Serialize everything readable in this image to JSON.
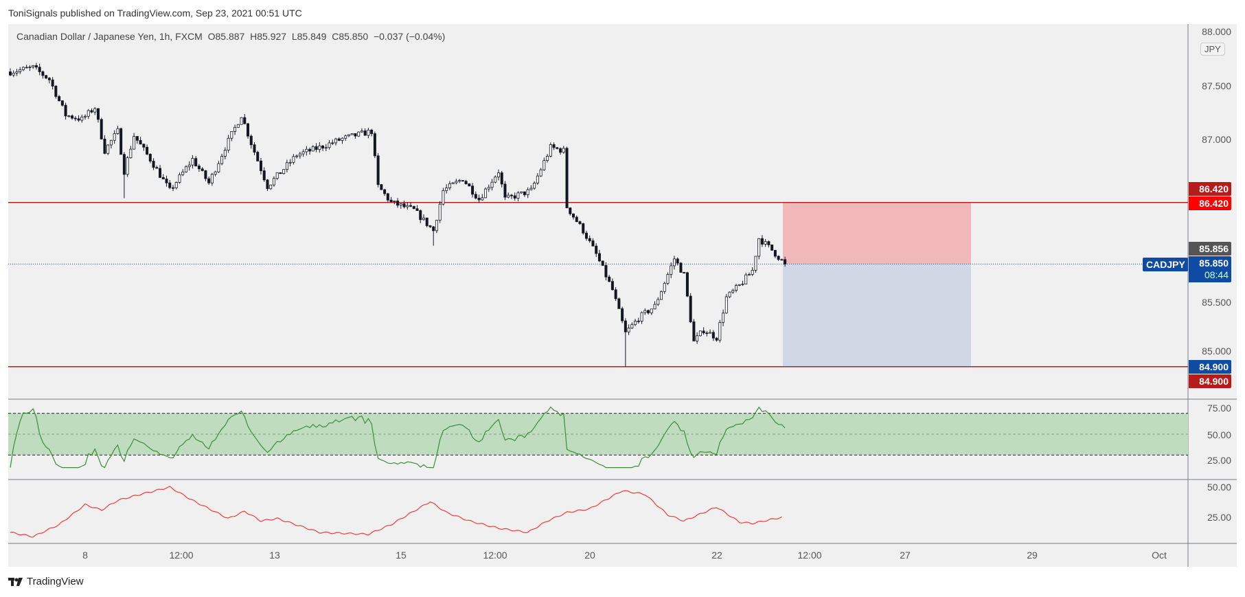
{
  "header": {
    "published": "ToniSignals published on TradingView.com, Sep 23, 2021 00:51 UTC"
  },
  "legend": {
    "symbol": "Canadian Dollar / Japanese Yen, 1h, FXCM",
    "open": "O85.887",
    "high": "H85.927",
    "low": "L85.849",
    "close": "C85.850",
    "change": "−0.037 (−0.04%)"
  },
  "price_axis": {
    "currency": "JPY",
    "ticks": [
      "88.000",
      "87.500",
      "87.000",
      "85.500",
      "85.000"
    ],
    "tags": {
      "resistance_a": "86.420",
      "resistance_b": "86.420",
      "prev": "85.856",
      "last": "85.850",
      "countdown": "08:44",
      "support_a": "84.900",
      "support_b": "84.900"
    },
    "symbol_label": "CADJPY"
  },
  "rsi_axis": {
    "ticks": [
      "75.00",
      "50.00",
      "25.00"
    ]
  },
  "lower_axis": {
    "ticks": [
      "50.00",
      "25.00"
    ]
  },
  "time_axis": {
    "labels": [
      "8",
      "12:00",
      "13",
      "15",
      "12:00",
      "20",
      "22",
      "12:00",
      "27",
      "29",
      "Oct"
    ]
  },
  "footer": {
    "brand": "TradingView"
  },
  "colors": {
    "level": "#b22222",
    "up": "#ffffff",
    "down": "#131722",
    "rsi": "#3c8c3c",
    "rsi_band": "#bfdcbf",
    "lower": "#f23b3b",
    "stop_zone": "#f0b8b8",
    "target_zone": "#d0d8e6",
    "last": "#0f4aa3"
  },
  "chart_data": {
    "type": "candlestick",
    "symbol": "CADJPY",
    "interval": "1h",
    "ylim": [
      84.75,
      88.0
    ],
    "levels": [
      86.42,
      84.9
    ],
    "last_price": 85.85,
    "position": {
      "entry": 85.85,
      "stop": 86.42,
      "target": 84.9,
      "type": "short"
    },
    "price_path": [
      [
        0,
        87.63
      ],
      [
        7,
        87.67
      ],
      [
        12,
        87.56
      ],
      [
        17,
        87.23
      ],
      [
        22,
        87.19
      ],
      [
        26,
        87.3
      ],
      [
        29,
        86.9
      ],
      [
        33,
        87.08
      ],
      [
        35,
        86.71
      ],
      [
        38,
        87.04
      ],
      [
        43,
        86.82
      ],
      [
        49,
        86.53
      ],
      [
        56,
        86.82
      ],
      [
        61,
        86.6
      ],
      [
        66,
        86.93
      ],
      [
        71,
        87.23
      ],
      [
        74,
        86.97
      ],
      [
        79,
        86.57
      ],
      [
        88,
        86.86
      ],
      [
        95,
        86.93
      ],
      [
        102,
        87.01
      ],
      [
        111,
        87.08
      ],
      [
        113,
        86.57
      ],
      [
        117,
        86.42
      ],
      [
        124,
        86.35
      ],
      [
        130,
        86.16
      ],
      [
        133,
        86.53
      ],
      [
        139,
        86.64
      ],
      [
        144,
        86.45
      ],
      [
        150,
        86.71
      ],
      [
        152,
        86.45
      ],
      [
        160,
        86.53
      ],
      [
        166,
        86.93
      ],
      [
        170,
        86.9
      ],
      [
        171,
        86.38
      ],
      [
        176,
        86.16
      ],
      [
        180,
        85.94
      ],
      [
        185,
        85.61
      ],
      [
        189,
        85.21
      ],
      [
        193,
        85.35
      ],
      [
        198,
        85.46
      ],
      [
        204,
        85.9
      ],
      [
        207,
        85.75
      ],
      [
        210,
        85.13
      ],
      [
        213,
        85.24
      ],
      [
        217,
        85.17
      ],
      [
        220,
        85.54
      ],
      [
        224,
        85.65
      ],
      [
        228,
        85.79
      ],
      [
        230,
        86.09
      ],
      [
        234,
        85.98
      ],
      [
        238,
        85.85
      ]
    ],
    "rsi": {
      "period": 14,
      "upper": 70,
      "lower": 30,
      "mid": 50,
      "ylim": [
        15,
        80
      ]
    },
    "lower_indicator": {
      "ylim": [
        0,
        55
      ],
      "values": [
        [
          0,
          12.5
        ],
        [
          7,
          9
        ],
        [
          15,
          19
        ],
        [
          23,
          35.5
        ],
        [
          28,
          31
        ],
        [
          33,
          39
        ],
        [
          40,
          44
        ],
        [
          49,
          50
        ],
        [
          56,
          39
        ],
        [
          67,
          24
        ],
        [
          72,
          30
        ],
        [
          77,
          22
        ],
        [
          82,
          24
        ],
        [
          95,
          12.5
        ],
        [
          110,
          11
        ],
        [
          117,
          19
        ],
        [
          129,
          38
        ],
        [
          134,
          29
        ],
        [
          141,
          22
        ],
        [
          150,
          16
        ],
        [
          159,
          12.5
        ],
        [
          165,
          22
        ],
        [
          171,
          29
        ],
        [
          178,
          32
        ],
        [
          188,
          47
        ],
        [
          195,
          44
        ],
        [
          202,
          27
        ],
        [
          207,
          22
        ],
        [
          217,
          33.5
        ],
        [
          224,
          21
        ],
        [
          228,
          20
        ],
        [
          237,
          25
        ]
      ]
    }
  }
}
